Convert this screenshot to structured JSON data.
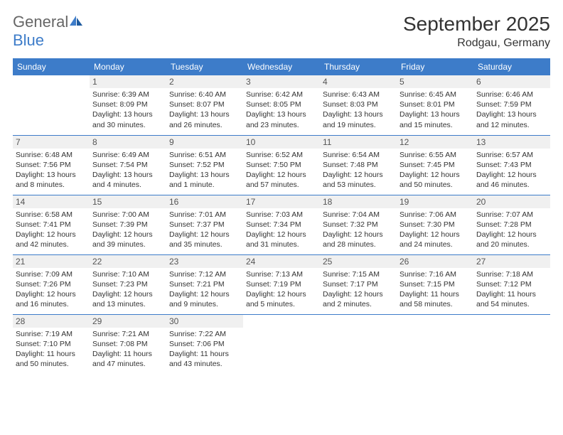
{
  "logo": {
    "text1": "General",
    "text2": "Blue"
  },
  "title": "September 2025",
  "location": "Rodgau, Germany",
  "headers": [
    "Sunday",
    "Monday",
    "Tuesday",
    "Wednesday",
    "Thursday",
    "Friday",
    "Saturday"
  ],
  "colors": {
    "header_bg": "#3d7cc9",
    "header_fg": "#ffffff",
    "daynum_bg": "#f0f0f0",
    "text": "#333333",
    "logo_gray": "#666666",
    "logo_blue": "#3d7cc9"
  },
  "weeks": [
    [
      null,
      {
        "n": "1",
        "sr": "Sunrise: 6:39 AM",
        "ss": "Sunset: 8:09 PM",
        "d1": "Daylight: 13 hours",
        "d2": "and 30 minutes."
      },
      {
        "n": "2",
        "sr": "Sunrise: 6:40 AM",
        "ss": "Sunset: 8:07 PM",
        "d1": "Daylight: 13 hours",
        "d2": "and 26 minutes."
      },
      {
        "n": "3",
        "sr": "Sunrise: 6:42 AM",
        "ss": "Sunset: 8:05 PM",
        "d1": "Daylight: 13 hours",
        "d2": "and 23 minutes."
      },
      {
        "n": "4",
        "sr": "Sunrise: 6:43 AM",
        "ss": "Sunset: 8:03 PM",
        "d1": "Daylight: 13 hours",
        "d2": "and 19 minutes."
      },
      {
        "n": "5",
        "sr": "Sunrise: 6:45 AM",
        "ss": "Sunset: 8:01 PM",
        "d1": "Daylight: 13 hours",
        "d2": "and 15 minutes."
      },
      {
        "n": "6",
        "sr": "Sunrise: 6:46 AM",
        "ss": "Sunset: 7:59 PM",
        "d1": "Daylight: 13 hours",
        "d2": "and 12 minutes."
      }
    ],
    [
      {
        "n": "7",
        "sr": "Sunrise: 6:48 AM",
        "ss": "Sunset: 7:56 PM",
        "d1": "Daylight: 13 hours",
        "d2": "and 8 minutes."
      },
      {
        "n": "8",
        "sr": "Sunrise: 6:49 AM",
        "ss": "Sunset: 7:54 PM",
        "d1": "Daylight: 13 hours",
        "d2": "and 4 minutes."
      },
      {
        "n": "9",
        "sr": "Sunrise: 6:51 AM",
        "ss": "Sunset: 7:52 PM",
        "d1": "Daylight: 13 hours",
        "d2": "and 1 minute."
      },
      {
        "n": "10",
        "sr": "Sunrise: 6:52 AM",
        "ss": "Sunset: 7:50 PM",
        "d1": "Daylight: 12 hours",
        "d2": "and 57 minutes."
      },
      {
        "n": "11",
        "sr": "Sunrise: 6:54 AM",
        "ss": "Sunset: 7:48 PM",
        "d1": "Daylight: 12 hours",
        "d2": "and 53 minutes."
      },
      {
        "n": "12",
        "sr": "Sunrise: 6:55 AM",
        "ss": "Sunset: 7:45 PM",
        "d1": "Daylight: 12 hours",
        "d2": "and 50 minutes."
      },
      {
        "n": "13",
        "sr": "Sunrise: 6:57 AM",
        "ss": "Sunset: 7:43 PM",
        "d1": "Daylight: 12 hours",
        "d2": "and 46 minutes."
      }
    ],
    [
      {
        "n": "14",
        "sr": "Sunrise: 6:58 AM",
        "ss": "Sunset: 7:41 PM",
        "d1": "Daylight: 12 hours",
        "d2": "and 42 minutes."
      },
      {
        "n": "15",
        "sr": "Sunrise: 7:00 AM",
        "ss": "Sunset: 7:39 PM",
        "d1": "Daylight: 12 hours",
        "d2": "and 39 minutes."
      },
      {
        "n": "16",
        "sr": "Sunrise: 7:01 AM",
        "ss": "Sunset: 7:37 PM",
        "d1": "Daylight: 12 hours",
        "d2": "and 35 minutes."
      },
      {
        "n": "17",
        "sr": "Sunrise: 7:03 AM",
        "ss": "Sunset: 7:34 PM",
        "d1": "Daylight: 12 hours",
        "d2": "and 31 minutes."
      },
      {
        "n": "18",
        "sr": "Sunrise: 7:04 AM",
        "ss": "Sunset: 7:32 PM",
        "d1": "Daylight: 12 hours",
        "d2": "and 28 minutes."
      },
      {
        "n": "19",
        "sr": "Sunrise: 7:06 AM",
        "ss": "Sunset: 7:30 PM",
        "d1": "Daylight: 12 hours",
        "d2": "and 24 minutes."
      },
      {
        "n": "20",
        "sr": "Sunrise: 7:07 AM",
        "ss": "Sunset: 7:28 PM",
        "d1": "Daylight: 12 hours",
        "d2": "and 20 minutes."
      }
    ],
    [
      {
        "n": "21",
        "sr": "Sunrise: 7:09 AM",
        "ss": "Sunset: 7:26 PM",
        "d1": "Daylight: 12 hours",
        "d2": "and 16 minutes."
      },
      {
        "n": "22",
        "sr": "Sunrise: 7:10 AM",
        "ss": "Sunset: 7:23 PM",
        "d1": "Daylight: 12 hours",
        "d2": "and 13 minutes."
      },
      {
        "n": "23",
        "sr": "Sunrise: 7:12 AM",
        "ss": "Sunset: 7:21 PM",
        "d1": "Daylight: 12 hours",
        "d2": "and 9 minutes."
      },
      {
        "n": "24",
        "sr": "Sunrise: 7:13 AM",
        "ss": "Sunset: 7:19 PM",
        "d1": "Daylight: 12 hours",
        "d2": "and 5 minutes."
      },
      {
        "n": "25",
        "sr": "Sunrise: 7:15 AM",
        "ss": "Sunset: 7:17 PM",
        "d1": "Daylight: 12 hours",
        "d2": "and 2 minutes."
      },
      {
        "n": "26",
        "sr": "Sunrise: 7:16 AM",
        "ss": "Sunset: 7:15 PM",
        "d1": "Daylight: 11 hours",
        "d2": "and 58 minutes."
      },
      {
        "n": "27",
        "sr": "Sunrise: 7:18 AM",
        "ss": "Sunset: 7:12 PM",
        "d1": "Daylight: 11 hours",
        "d2": "and 54 minutes."
      }
    ],
    [
      {
        "n": "28",
        "sr": "Sunrise: 7:19 AM",
        "ss": "Sunset: 7:10 PM",
        "d1": "Daylight: 11 hours",
        "d2": "and 50 minutes."
      },
      {
        "n": "29",
        "sr": "Sunrise: 7:21 AM",
        "ss": "Sunset: 7:08 PM",
        "d1": "Daylight: 11 hours",
        "d2": "and 47 minutes."
      },
      {
        "n": "30",
        "sr": "Sunrise: 7:22 AM",
        "ss": "Sunset: 7:06 PM",
        "d1": "Daylight: 11 hours",
        "d2": "and 43 minutes."
      },
      null,
      null,
      null,
      null
    ]
  ]
}
